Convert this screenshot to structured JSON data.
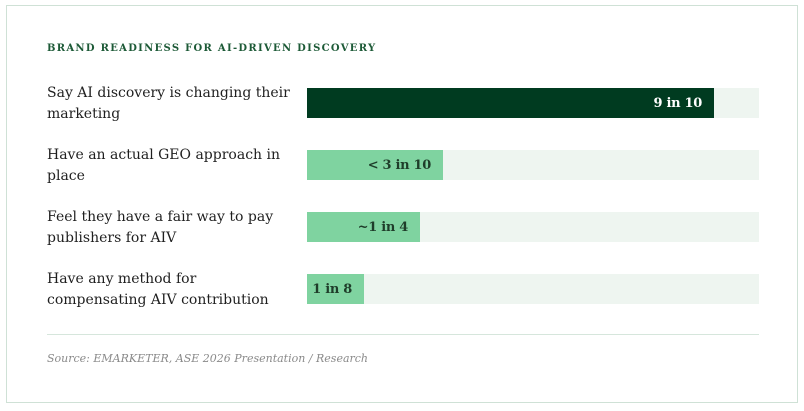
{
  "title": "BRAND READINESS FOR AI-DRIVEN DISCOVERY",
  "source": "Source: EMARKETER, ASE 2026 Presentation / Research",
  "colors": {
    "strong_bar": "#003b20",
    "light_bar": "#7fd3a0",
    "track": "#eef5f0",
    "strong_text": "#ffffff",
    "light_text": "#1f3d2a"
  },
  "chart_data": {
    "type": "bar",
    "orientation": "horizontal",
    "title": "BRAND READINESS FOR AI-DRIVEN DISCOVERY",
    "categories": [
      "Say AI discovery is changing their marketing",
      "Have an actual GEO approach in place",
      "Feel they have a fair way to pay publishers for AIV",
      "Have any method for compensating AIV contribution"
    ],
    "values": [
      0.9,
      0.3,
      0.25,
      0.125
    ],
    "value_labels": [
      "9 in 10",
      "< 3 in 10",
      "~1 in 4",
      "1 in 8"
    ],
    "highlight": [
      true,
      false,
      false,
      false
    ],
    "xlim": [
      0,
      1
    ],
    "grid": false
  }
}
